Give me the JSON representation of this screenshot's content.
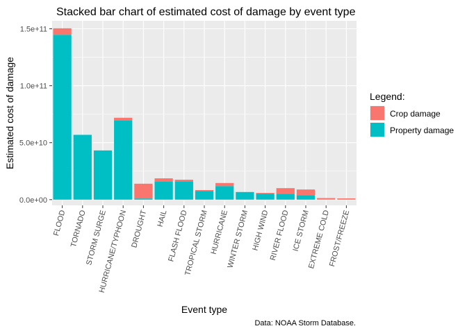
{
  "chart_data": {
    "type": "bar",
    "stacked": true,
    "title": "Stacked bar chart of estimated cost of damage by event type",
    "xlabel": "Event type",
    "ylabel": "Estimated cost of damage",
    "caption": "Data: NOAA Storm Database.",
    "categories": [
      "FLOOD",
      "TORNADO",
      "STORM SURGE",
      "HURRICANE/TYPHOON",
      "DROUGHT",
      "HAIL",
      "FLASH FLOOD",
      "TROPICAL STORM",
      "HURRICANE",
      "WINTER STORM",
      "HIGH WIND",
      "RIVER FLOOD",
      "ICE STORM",
      "EXTREME COLD",
      "FROST/FREEZE"
    ],
    "series": [
      {
        "name": "Property damage",
        "color": "#00BFC4",
        "values": [
          144700000000.0,
          56900000000.0,
          43200000000.0,
          69300000000.0,
          1000000000.0,
          15700000000.0,
          16100000000.0,
          7700000000.0,
          11900000000.0,
          6700000000.0,
          5300000000.0,
          5100000000.0,
          3900000000.0,
          70000000.0,
          10000000.0
        ]
      },
      {
        "name": "Crop damage",
        "color": "#F8766D",
        "values": [
          5700000000.0,
          0,
          0,
          2600000000.0,
          13000000000.0,
          3000000000.0,
          1400000000.0,
          700000000.0,
          2700000000.0,
          0,
          600000000.0,
          5000000000.0,
          5000000000.0,
          1300000000.0,
          1100000000.0
        ]
      }
    ],
    "ylim": [
      -5000000000.0,
      157000000000.0
    ],
    "yticks": [
      0,
      50000000000.0,
      100000000000.0,
      150000000000.0
    ],
    "ytick_labels": [
      "0.0e+00",
      "5.0e+10",
      "1.0e+11",
      "1.5e+11"
    ],
    "grid": true,
    "legend": {
      "title": "Legend:",
      "position": "right",
      "entries": [
        {
          "label": "Crop damage",
          "color": "#F8766D"
        },
        {
          "label": "Property damage",
          "color": "#00BFC4"
        }
      ]
    },
    "panel_background": "#EBEBEB"
  }
}
